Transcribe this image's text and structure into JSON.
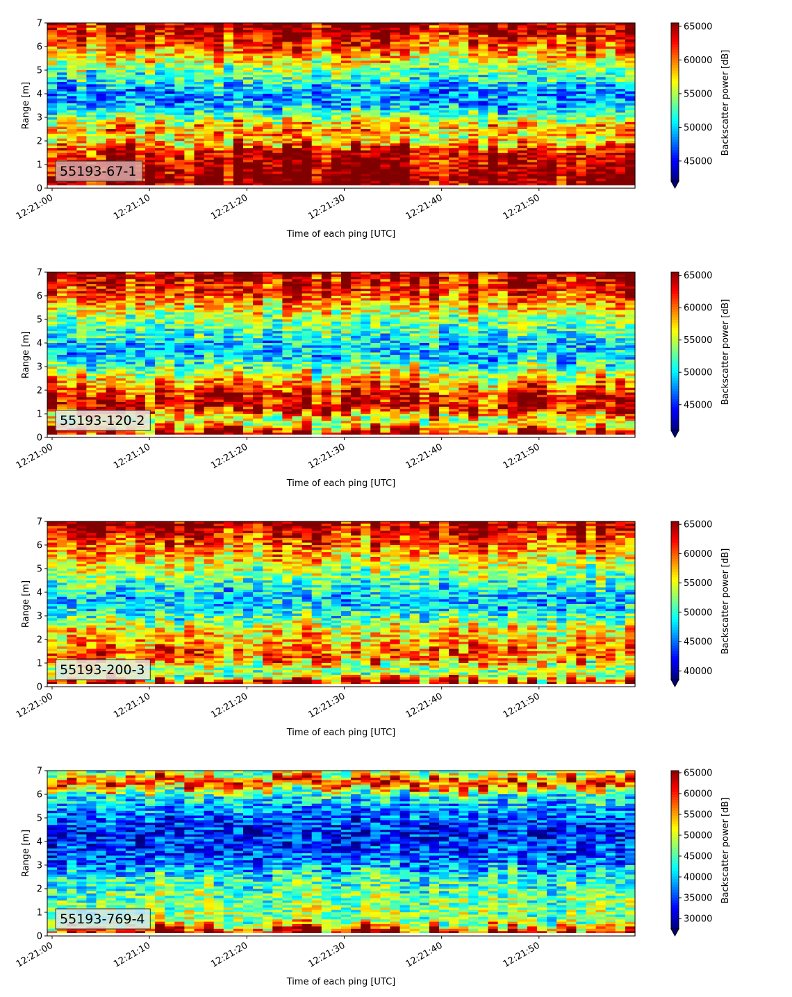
{
  "chart_data": [
    {
      "type": "heatmap",
      "label": "55193-67-1",
      "label_bg": "#d9a9a9",
      "xlabel": "Time of each ping [UTC]",
      "ylabel": "Range [m]",
      "xticks": [
        "12:21:00",
        "12:21:10",
        "12:21:20",
        "12:21:30",
        "12:21:40",
        "12:21:50"
      ],
      "xlim_seconds": [
        0,
        60
      ],
      "yticks": [
        "0",
        "1",
        "2",
        "3",
        "4",
        "5",
        "6",
        "7"
      ],
      "ylim": [
        0,
        7
      ],
      "colorbar_label": "Backscatter power [dB]",
      "colorbar_ticks": [
        "45000",
        "50000",
        "55000",
        "60000",
        "65000"
      ],
      "clim": [
        42000,
        65500
      ],
      "colormap": "jet",
      "colorbar_extend": "min",
      "profile": [
        {
          "range": 0.1,
          "level": 1.0
        },
        {
          "range": 0.5,
          "level": 1.0
        },
        {
          "range": 1.0,
          "level": 0.95
        },
        {
          "range": 1.6,
          "level": 0.9
        },
        {
          "range": 2.0,
          "level": 0.6
        },
        {
          "range": 2.5,
          "level": 0.75
        },
        {
          "range": 3.0,
          "level": 0.5
        },
        {
          "range": 3.5,
          "level": 0.3
        },
        {
          "range": 4.0,
          "level": 0.25
        },
        {
          "range": 4.5,
          "level": 0.4
        },
        {
          "range": 5.0,
          "level": 0.5
        },
        {
          "range": 5.5,
          "level": 0.65
        },
        {
          "range": 6.0,
          "level": 0.8
        },
        {
          "range": 6.6,
          "level": 0.92
        },
        {
          "range": 7.0,
          "level": 1.0
        }
      ]
    },
    {
      "type": "heatmap",
      "label": "55193-120-2",
      "label_bg": "#e6e6e6",
      "xlabel": "Time of each ping [UTC]",
      "ylabel": "Range [m]",
      "xticks": [
        "12:21:00",
        "12:21:10",
        "12:21:20",
        "12:21:30",
        "12:21:40",
        "12:21:50"
      ],
      "xlim_seconds": [
        0,
        60
      ],
      "yticks": [
        "0",
        "1",
        "2",
        "3",
        "4",
        "5",
        "6",
        "7"
      ],
      "ylim": [
        0,
        7
      ],
      "colorbar_label": "Backscatter power [dB]",
      "colorbar_ticks": [
        "45000",
        "50000",
        "55000",
        "60000",
        "65000"
      ],
      "clim": [
        41000,
        65500
      ],
      "colormap": "jet",
      "colorbar_extend": "min",
      "profile": [
        {
          "range": 0.1,
          "level": 1.0
        },
        {
          "range": 0.5,
          "level": 0.6
        },
        {
          "range": 0.8,
          "level": 0.55
        },
        {
          "range": 1.2,
          "level": 0.95
        },
        {
          "range": 1.8,
          "level": 0.85
        },
        {
          "range": 2.5,
          "level": 0.65
        },
        {
          "range": 3.0,
          "level": 0.45
        },
        {
          "range": 3.5,
          "level": 0.3
        },
        {
          "range": 4.0,
          "level": 0.35
        },
        {
          "range": 4.5,
          "level": 0.45
        },
        {
          "range": 5.0,
          "level": 0.5
        },
        {
          "range": 5.5,
          "level": 0.65
        },
        {
          "range": 6.0,
          "level": 0.8
        },
        {
          "range": 6.6,
          "level": 0.9
        },
        {
          "range": 7.0,
          "level": 0.95
        }
      ]
    },
    {
      "type": "heatmap",
      "label": "55193-200-3",
      "label_bg": "#e8e8e0",
      "xlabel": "Time of each ping [UTC]",
      "ylabel": "Range [m]",
      "xticks": [
        "12:21:00",
        "12:21:10",
        "12:21:20",
        "12:21:30",
        "12:21:40",
        "12:21:50"
      ],
      "xlim_seconds": [
        0,
        60
      ],
      "yticks": [
        "0",
        "1",
        "2",
        "3",
        "4",
        "5",
        "6",
        "7"
      ],
      "ylim": [
        0,
        7
      ],
      "colorbar_label": "Backscatter power [dB]",
      "colorbar_ticks": [
        "40000",
        "45000",
        "50000",
        "55000",
        "60000",
        "65000"
      ],
      "clim": [
        38500,
        65500
      ],
      "colormap": "jet",
      "colorbar_extend": "min",
      "profile": [
        {
          "range": 0.1,
          "level": 1.0
        },
        {
          "range": 0.4,
          "level": 0.55
        },
        {
          "range": 0.8,
          "level": 0.5
        },
        {
          "range": 1.2,
          "level": 0.8
        },
        {
          "range": 1.8,
          "level": 0.7
        },
        {
          "range": 2.5,
          "level": 0.6
        },
        {
          "range": 3.0,
          "level": 0.4
        },
        {
          "range": 3.5,
          "level": 0.3
        },
        {
          "range": 4.0,
          "level": 0.35
        },
        {
          "range": 4.5,
          "level": 0.45
        },
        {
          "range": 5.0,
          "level": 0.55
        },
        {
          "range": 5.5,
          "level": 0.65
        },
        {
          "range": 6.0,
          "level": 0.75
        },
        {
          "range": 6.6,
          "level": 0.9
        },
        {
          "range": 7.0,
          "level": 0.95
        }
      ]
    },
    {
      "type": "heatmap",
      "label": "55193-769-4",
      "label_bg": "#cfe6f3",
      "xlabel": "Time of each ping [UTC]",
      "ylabel": "Range [m]",
      "xticks": [
        "12:21:00",
        "12:21:10",
        "12:21:20",
        "12:21:30",
        "12:21:40",
        "12:21:50"
      ],
      "xlim_seconds": [
        0,
        60
      ],
      "yticks": [
        "0",
        "1",
        "2",
        "3",
        "4",
        "5",
        "6",
        "7"
      ],
      "ylim": [
        0,
        7
      ],
      "colorbar_label": "Backscatter power [dB]",
      "colorbar_ticks": [
        "30000",
        "35000",
        "40000",
        "45000",
        "50000",
        "55000",
        "60000",
        "65000"
      ],
      "clim": [
        27500,
        65500
      ],
      "colormap": "jet",
      "colorbar_extend": "min",
      "profile": [
        {
          "range": 0.1,
          "level": 1.0
        },
        {
          "range": 0.3,
          "level": 0.75
        },
        {
          "range": 0.6,
          "level": 0.5
        },
        {
          "range": 1.0,
          "level": 0.5
        },
        {
          "range": 1.5,
          "level": 0.5
        },
        {
          "range": 2.0,
          "level": 0.45
        },
        {
          "range": 2.5,
          "level": 0.4
        },
        {
          "range": 3.0,
          "level": 0.25
        },
        {
          "range": 3.5,
          "level": 0.2
        },
        {
          "range": 4.0,
          "level": 0.15
        },
        {
          "range": 4.5,
          "level": 0.15
        },
        {
          "range": 5.0,
          "level": 0.2
        },
        {
          "range": 5.5,
          "level": 0.3
        },
        {
          "range": 6.0,
          "level": 0.4
        },
        {
          "range": 6.5,
          "level": 0.9
        },
        {
          "range": 7.0,
          "level": 0.45
        }
      ]
    }
  ]
}
